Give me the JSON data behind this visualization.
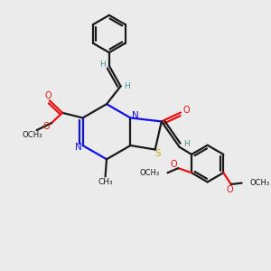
{
  "bg": "#ebebeb",
  "bond_color": "#1a1a1a",
  "bw": 1.6,
  "colors": {
    "N": "#1010ee",
    "O": "#ee1010",
    "S": "#ccaa00",
    "teal": "#4a9090",
    "default": "#1a1a1a"
  },
  "xlim": [
    0,
    10
  ],
  "ylim": [
    0,
    10
  ]
}
